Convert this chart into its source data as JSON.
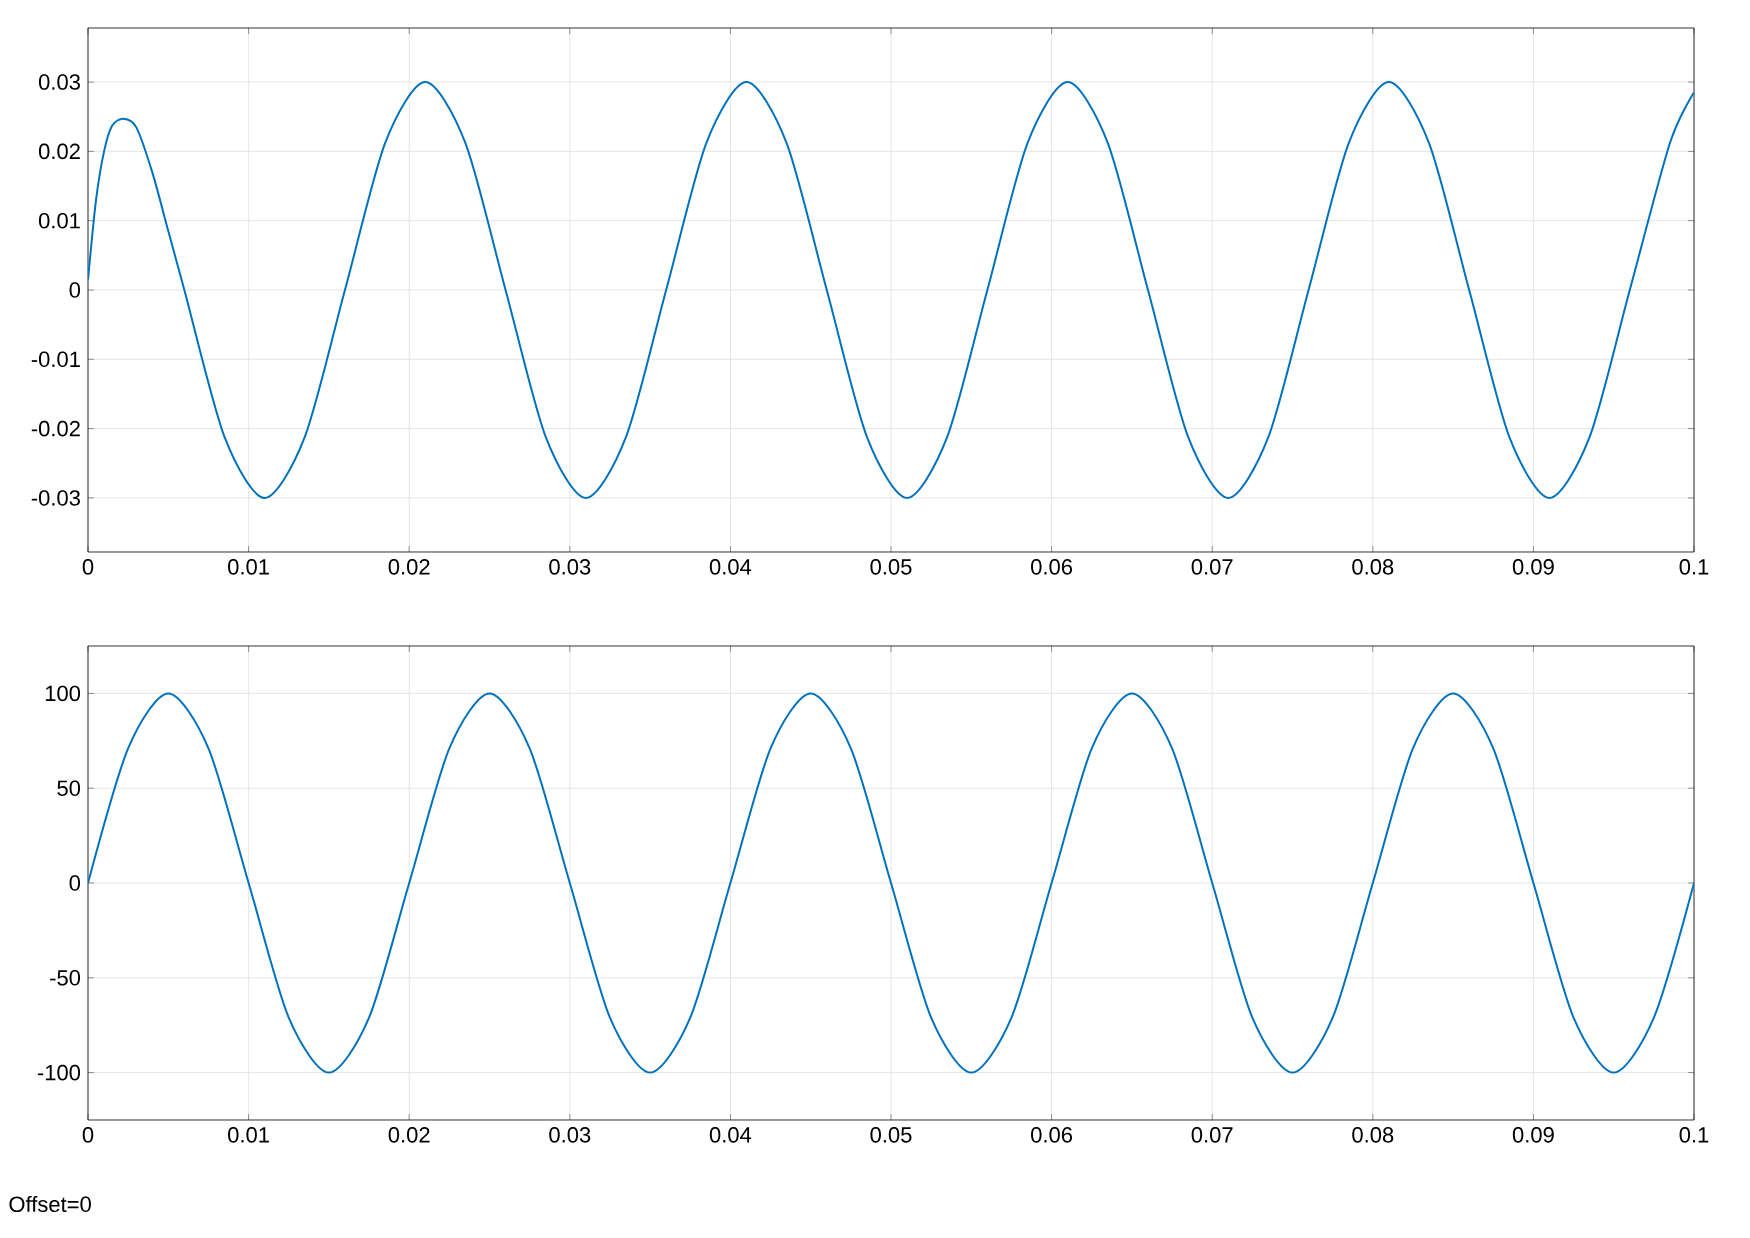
{
  "chart_data": [
    {
      "type": "line",
      "x": [
        0,
        0.0005,
        0.001,
        0.0015,
        0.0022,
        0.003,
        0.004,
        0.005,
        0.006,
        0.0085,
        0.011,
        0.0135,
        0.016,
        0.0185,
        0.021,
        0.0235,
        0.026,
        0.0285,
        0.031,
        0.0335,
        0.036,
        0.0385,
        0.041,
        0.0435,
        0.046,
        0.0485,
        0.051,
        0.0535,
        0.056,
        0.0585,
        0.061,
        0.0635,
        0.066,
        0.0685,
        0.071,
        0.0735,
        0.076,
        0.0785,
        0.081,
        0.0835,
        0.086,
        0.0885,
        0.091,
        0.0935,
        0.096,
        0.0985,
        0.1
      ],
      "series": [
        {
          "color": "#0072bd",
          "values": [
            0.0015,
            0.013,
            0.02,
            0.0237,
            0.0247,
            0.0235,
            0.017,
            0.0085,
            0,
            -0.0212,
            -0.03,
            -0.0212,
            0,
            0.0212,
            0.03,
            0.0212,
            0,
            -0.0212,
            -0.03,
            -0.0212,
            0,
            0.0212,
            0.03,
            0.0212,
            0,
            -0.0212,
            -0.03,
            -0.0212,
            0,
            0.0212,
            0.03,
            0.0212,
            0,
            -0.0212,
            -0.03,
            -0.0212,
            0,
            0.0212,
            0.03,
            0.0212,
            0,
            -0.0212,
            -0.03,
            -0.0212,
            0,
            0.0212,
            0.0285
          ]
        }
      ],
      "xlim": [
        0,
        0.1
      ],
      "xticks": [
        0,
        0.01,
        0.02,
        0.03,
        0.04,
        0.05,
        0.06,
        0.07,
        0.08,
        0.09,
        0.1
      ],
      "ylim": [
        -0.0378,
        0.0378
      ],
      "yticks": [
        -0.03,
        -0.02,
        -0.01,
        0,
        0.01,
        0.02,
        0.03
      ],
      "grid": true
    },
    {
      "type": "line",
      "x": [
        0,
        0.0025,
        0.005,
        0.0075,
        0.01,
        0.0125,
        0.015,
        0.0175,
        0.02,
        0.0225,
        0.025,
        0.0275,
        0.03,
        0.0325,
        0.035,
        0.0375,
        0.04,
        0.0425,
        0.045,
        0.0475,
        0.05,
        0.0525,
        0.055,
        0.0575,
        0.06,
        0.0625,
        0.065,
        0.0675,
        0.07,
        0.0725,
        0.075,
        0.0775,
        0.08,
        0.0825,
        0.085,
        0.0875,
        0.09,
        0.0925,
        0.095,
        0.0975,
        0.1
      ],
      "series": [
        {
          "color": "#0072bd",
          "values": [
            0,
            71,
            100,
            71,
            0,
            -71,
            -100,
            -71,
            0,
            71,
            100,
            71,
            0,
            -71,
            -100,
            -71,
            0,
            71,
            100,
            71,
            0,
            -71,
            -100,
            -71,
            0,
            71,
            100,
            71,
            0,
            -71,
            -100,
            -71,
            0,
            71,
            100,
            71,
            0,
            -71,
            -100,
            -71,
            0
          ]
        }
      ],
      "xlim": [
        0,
        0.1
      ],
      "xticks": [
        0,
        0.01,
        0.02,
        0.03,
        0.04,
        0.05,
        0.06,
        0.07,
        0.08,
        0.09,
        0.1
      ],
      "ylim": [
        -125,
        125
      ],
      "yticks": [
        -100,
        -50,
        0,
        50,
        100
      ],
      "grid": true,
      "annotations": [
        "Offset=0"
      ]
    }
  ]
}
